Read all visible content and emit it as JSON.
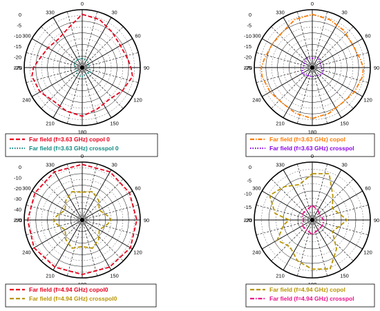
{
  "chart_data": [
    {
      "type": "polar-line",
      "angle_ticks": [
        "0",
        "30",
        "60",
        "90",
        "120",
        "150",
        "180",
        "210",
        "240",
        "270",
        "300",
        "330"
      ],
      "r_ticks": [
        "0",
        "-5",
        "-10",
        "-15",
        "-20",
        "-25"
      ],
      "r_range": [
        -25,
        0
      ],
      "series": [
        {
          "name": "Far field (f=3.63 GHz) copol 0",
          "color": "#e8001c",
          "dash": "long",
          "angles": [
            0,
            20,
            40,
            60,
            80,
            90,
            100,
            120,
            140,
            160,
            180,
            200,
            220,
            240,
            260,
            270,
            280,
            300,
            320,
            340,
            360
          ],
          "values": [
            -2,
            -3,
            -5,
            -6,
            -5,
            -4,
            -3,
            -5,
            -7,
            -6,
            -4,
            -5,
            -6,
            -4,
            -3,
            -4,
            -6,
            -8,
            -9,
            -7,
            -2
          ]
        },
        {
          "name": "Far field (f=3.63 GHz) crosspol 0",
          "color": "#108a82",
          "dash": "dot",
          "angles": [
            0,
            30,
            60,
            90,
            120,
            150,
            180,
            210,
            240,
            270,
            300,
            330,
            360
          ],
          "values": [
            -21,
            -21,
            -22,
            -22,
            -21,
            -22,
            -21,
            -21,
            -22,
            -22,
            -21,
            -21,
            -21
          ]
        }
      ]
    },
    {
      "type": "polar-line",
      "angle_ticks": [
        "0",
        "30",
        "60",
        "90",
        "120",
        "150",
        "180",
        "210",
        "240",
        "270",
        "300",
        "330"
      ],
      "r_ticks": [
        "0",
        "-5",
        "-10",
        "-15",
        "-20",
        "-25"
      ],
      "r_range": [
        -25,
        0
      ],
      "series": [
        {
          "name": "Far field (f=3.63 GHz) copol",
          "color": "#ff7a00",
          "dash": "dashdot",
          "angles": [
            0,
            20,
            40,
            60,
            80,
            90,
            100,
            120,
            140,
            160,
            180,
            200,
            220,
            240,
            260,
            270,
            280,
            300,
            320,
            340,
            360
          ],
          "values": [
            -2,
            -3,
            -4,
            -5,
            -4,
            -3,
            -3,
            -4,
            -5,
            -4,
            -3,
            -4,
            -5,
            -4,
            -3,
            -3,
            -4,
            -5,
            -5,
            -3,
            -2
          ]
        },
        {
          "name": "Far field (f=3.63 GHz) crosspol",
          "color": "#8a00e6",
          "dash": "dot",
          "angles": [
            0,
            30,
            60,
            90,
            120,
            150,
            180,
            210,
            240,
            270,
            300,
            330,
            360
          ],
          "values": [
            -21,
            -20,
            -21,
            -21,
            -20,
            -21,
            -21,
            -21,
            -20,
            -21,
            -21,
            -20,
            -21
          ]
        }
      ]
    },
    {
      "type": "polar-line",
      "angle_ticks": [
        "0",
        "30",
        "60",
        "90",
        "120",
        "150",
        "180",
        "210",
        "240",
        "270",
        "300",
        "330"
      ],
      "r_ticks": [
        "0",
        "-10",
        "-20",
        "-30",
        "-40",
        "-50"
      ],
      "r_range": [
        -50,
        0
      ],
      "series": [
        {
          "name": "Far field (f=4.94 GHz) copol0",
          "color": "#e8001c",
          "dash": "long",
          "angles": [
            0,
            30,
            60,
            90,
            120,
            150,
            180,
            210,
            240,
            270,
            300,
            330,
            360
          ],
          "values": [
            -2,
            -2,
            -3,
            -3,
            -2,
            -3,
            -3,
            -3,
            -2,
            -3,
            -3,
            -2,
            -2
          ]
        },
        {
          "name": "Far field (f=4.94 GHz) crosspol0",
          "color": "#b89400",
          "dash": "long",
          "angles": [
            0,
            20,
            40,
            60,
            80,
            90,
            100,
            120,
            140,
            160,
            180,
            200,
            220,
            240,
            260,
            270,
            280,
            300,
            320,
            340,
            360
          ],
          "values": [
            -26,
            -24,
            -28,
            -33,
            -28,
            -25,
            -28,
            -33,
            -28,
            -24,
            -27,
            -24,
            -28,
            -33,
            -28,
            -25,
            -28,
            -33,
            -28,
            -24,
            -26
          ]
        }
      ]
    },
    {
      "type": "polar-line",
      "angle_ticks": [
        "0",
        "30",
        "60",
        "90",
        "120",
        "150",
        "180",
        "210",
        "240",
        "270",
        "300",
        "330"
      ],
      "r_ticks": [
        "0",
        "-5",
        "-10",
        "-15",
        "-20"
      ],
      "r_range": [
        -20,
        0
      ],
      "series": [
        {
          "name": "Far field (f=4.94 GHz) copol",
          "color": "#b89400",
          "dash": "long",
          "angles": [
            0,
            20,
            40,
            60,
            80,
            90,
            100,
            120,
            140,
            160,
            180,
            200,
            220,
            240,
            260,
            270,
            280,
            300,
            320,
            340,
            360
          ],
          "values": [
            -4,
            -3,
            -9,
            -12,
            -10,
            -8,
            -10,
            -12,
            -7,
            -2,
            -3,
            -5,
            -8,
            -6,
            -10,
            -12,
            -7,
            -3,
            -5,
            -7,
            -4
          ]
        },
        {
          "name": "Far field (f=4.94 GHz) crosspol",
          "color": "#e8108a",
          "dash": "dashdot",
          "angles": [
            0,
            30,
            60,
            90,
            120,
            150,
            180,
            210,
            240,
            270,
            300,
            330,
            360
          ],
          "values": [
            -15,
            -16,
            -17,
            -16,
            -16,
            -16,
            -15,
            -16,
            -16,
            -17,
            -16,
            -16,
            -15
          ]
        }
      ]
    }
  ]
}
